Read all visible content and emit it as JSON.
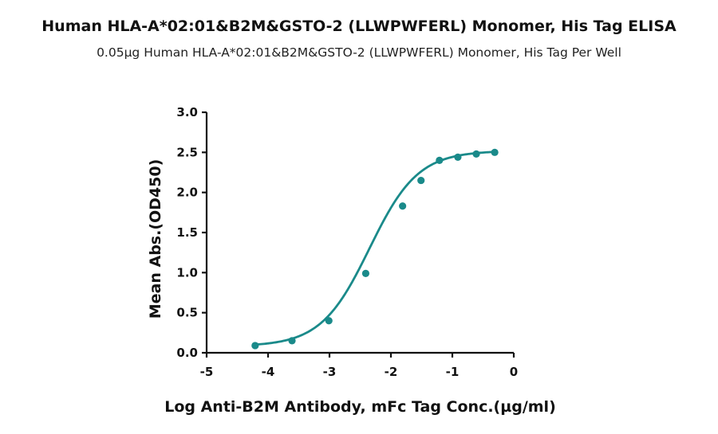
{
  "chart_data": {
    "type": "line",
    "title": "Human HLA-A*02:01&B2M&GSTO-2 (LLWPWFERL) Monomer, His Tag ELISA",
    "subtitle": "0.05µg Human HLA-A*02:01&B2M&GSTO-2 (LLWPWFERL) Monomer, His Tag Per Well",
    "xlabel": "Log Anti-B2M Antibody, mFc Tag Conc.(µg/ml)",
    "ylabel": "Mean Abs.(OD450)",
    "xlim": [
      -5,
      0
    ],
    "ylim": [
      0,
      3.0
    ],
    "x_ticks": [
      "-5",
      "-4",
      "-3",
      "-2",
      "-1",
      "0"
    ],
    "y_ticks": [
      "0.0",
      "0.5",
      "1.0",
      "1.5",
      "2.0",
      "2.5",
      "3.0"
    ],
    "series": [
      {
        "color": "#1a8a8a",
        "x": [
          -4.21,
          -3.61,
          -3.01,
          -2.41,
          -1.81,
          -1.51,
          -1.21,
          -0.91,
          -0.61,
          -0.31
        ],
        "y": [
          0.09,
          0.15,
          0.4,
          0.99,
          1.83,
          2.15,
          2.4,
          2.44,
          2.48,
          2.5
        ]
      }
    ],
    "fit": {
      "bottom": 0.08,
      "top": 2.52,
      "ec50_log": -2.35,
      "hill": 1.1
    },
    "grid": false,
    "legend": "none"
  }
}
